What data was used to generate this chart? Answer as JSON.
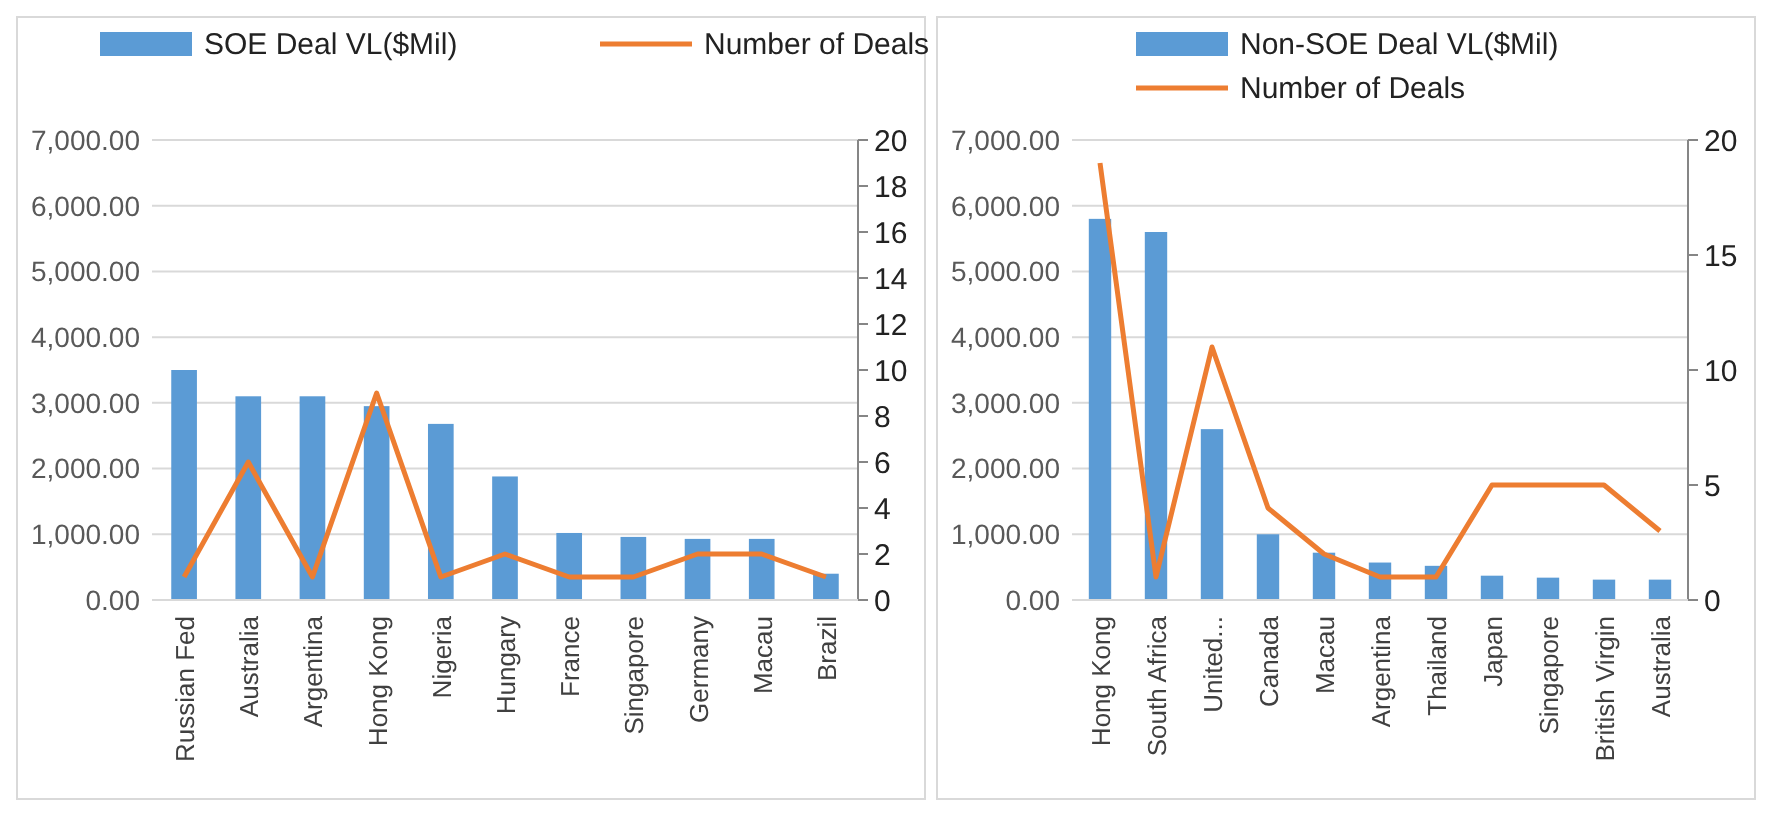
{
  "chart_data": [
    {
      "type": "bar",
      "categories": [
        "Russian Fed",
        "Australia",
        "Argentina",
        "Hong Kong",
        "Nigeria",
        "Hungary",
        "France",
        "Singapore",
        "Germany",
        "Macau",
        "Brazil"
      ],
      "series": [
        {
          "name": "SOE Deal VL($Mil)",
          "color": "#5b9bd5",
          "values": [
            3500,
            3100,
            3100,
            2950,
            2680,
            1880,
            1020,
            960,
            930,
            930,
            400
          ]
        },
        {
          "name": "Number of Deals",
          "type": "line",
          "axis": "y2",
          "color": "#ed7d31",
          "values": [
            1,
            6,
            1,
            9,
            1,
            2,
            1,
            1,
            2,
            2,
            1
          ]
        }
      ],
      "ylim": [
        0,
        7000
      ],
      "yticks": [
        {
          "value": 0,
          "label": "0.00"
        },
        {
          "value": 1000,
          "label": "1,000.00"
        },
        {
          "value": 2000,
          "label": "2,000.00"
        },
        {
          "value": 3000,
          "label": "3,000.00"
        },
        {
          "value": 4000,
          "label": "4,000.00"
        },
        {
          "value": 5000,
          "label": "5,000.00"
        },
        {
          "value": 6000,
          "label": "6,000.00"
        },
        {
          "value": 7000,
          "label": "7,000.00"
        }
      ],
      "y2lim": [
        0,
        20
      ],
      "y2ticks": [
        0,
        2,
        4,
        6,
        8,
        10,
        12,
        14,
        16,
        18,
        20
      ],
      "grid": "y",
      "legend": "top"
    },
    {
      "type": "bar",
      "categories": [
        "Hong Kong",
        "South Africa",
        "United...",
        "Canada",
        "Macau",
        "Argentina",
        "Thailand",
        "Japan",
        "Singapore",
        "British Virgin",
        "Australia"
      ],
      "series": [
        {
          "name": "Non-SOE Deal VL($Mil)",
          "color": "#5b9bd5",
          "values": [
            5800,
            5600,
            2600,
            1000,
            720,
            570,
            520,
            370,
            340,
            310,
            310
          ]
        },
        {
          "name": "Number of Deals",
          "type": "line",
          "axis": "y2",
          "color": "#ed7d31",
          "values": [
            19,
            1,
            11,
            4,
            2,
            1,
            1,
            5,
            5,
            5,
            3
          ]
        }
      ],
      "ylim": [
        0,
        7000
      ],
      "yticks": [
        {
          "value": 0,
          "label": "0.00"
        },
        {
          "value": 1000,
          "label": "1,000.00"
        },
        {
          "value": 2000,
          "label": "2,000.00"
        },
        {
          "value": 3000,
          "label": "3,000.00"
        },
        {
          "value": 4000,
          "label": "4,000.00"
        },
        {
          "value": 5000,
          "label": "5,000.00"
        },
        {
          "value": 6000,
          "label": "6,000.00"
        },
        {
          "value": 7000,
          "label": "7,000.00"
        }
      ],
      "y2lim": [
        0,
        20
      ],
      "y2ticks": [
        0,
        5,
        10,
        15,
        20
      ],
      "grid": "y",
      "legend": "top"
    }
  ]
}
